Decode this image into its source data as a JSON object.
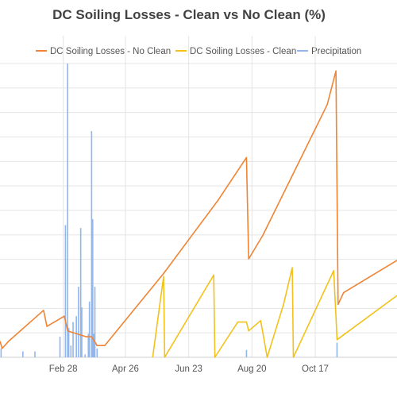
{
  "chart_data": {
    "type": "line",
    "title": "DC Soiling Losses - Clean vs No Clean (%)",
    "xlabel": "",
    "ylabel": "",
    "x_tick_labels": [
      "Feb 28",
      "Apr 26",
      "Jun 23",
      "Aug 20",
      "Oct 17"
    ],
    "x_tick_days": [
      58,
      115,
      173,
      231,
      289
    ],
    "xlim": [
      0,
      364
    ],
    "ylim": [
      0,
      10
    ],
    "grid": true,
    "legend": "top-center",
    "series": [
      {
        "name": "DC Soiling Losses - No Clean",
        "color": "#ee8434",
        "kind": "line",
        "points": [
          [
            0,
            0.55
          ],
          [
            2,
            0.3
          ],
          [
            8,
            0.55
          ],
          [
            40,
            1.6
          ],
          [
            43,
            1.05
          ],
          [
            59,
            1.4
          ],
          [
            62,
            0.9
          ],
          [
            79,
            0.7
          ],
          [
            84,
            0.7
          ],
          [
            89,
            0.4
          ],
          [
            96,
            0.4
          ],
          [
            150,
            2.85
          ],
          [
            200,
            5.35
          ],
          [
            226,
            6.8
          ],
          [
            228,
            3.35
          ],
          [
            241,
            4.15
          ],
          [
            300,
            8.6
          ],
          [
            308,
            9.75
          ],
          [
            310,
            1.8
          ],
          [
            315,
            2.2
          ],
          [
            364,
            3.3
          ]
        ]
      },
      {
        "name": "DC Soiling Losses - Clean",
        "color": "#f2c21b",
        "kind": "line",
        "points": [
          [
            140,
            0.0
          ],
          [
            150,
            2.75
          ],
          [
            151,
            0.0
          ],
          [
            196,
            2.8
          ],
          [
            197,
            0.0
          ],
          [
            218,
            1.2
          ],
          [
            226,
            1.2
          ],
          [
            228,
            0.9
          ],
          [
            239,
            1.25
          ],
          [
            245,
            0.0
          ],
          [
            260,
            1.8
          ],
          [
            268,
            3.05
          ],
          [
            269,
            0.0
          ],
          [
            306,
            2.95
          ],
          [
            309,
            0.6
          ],
          [
            364,
            2.1
          ]
        ]
      },
      {
        "name": "Precipitation",
        "color": "#90b6ed",
        "kind": "bars",
        "points": [
          [
            1,
            0.3
          ],
          [
            21,
            0.2
          ],
          [
            32,
            0.2
          ],
          [
            55,
            0.7
          ],
          [
            60,
            4.5
          ],
          [
            62,
            10.0
          ],
          [
            63,
            1.0
          ],
          [
            65,
            0.4
          ],
          [
            67,
            1.2
          ],
          [
            70,
            1.4
          ],
          [
            72,
            2.4
          ],
          [
            74,
            4.4
          ],
          [
            75,
            1.7
          ],
          [
            78,
            0.1
          ],
          [
            81,
            0.8
          ],
          [
            82,
            1.9
          ],
          [
            84,
            7.7
          ],
          [
            85,
            4.7
          ],
          [
            86,
            0.8
          ],
          [
            87,
            2.4
          ],
          [
            89,
            0.3
          ],
          [
            226,
            0.25
          ],
          [
            309,
            0.5
          ]
        ]
      }
    ]
  }
}
